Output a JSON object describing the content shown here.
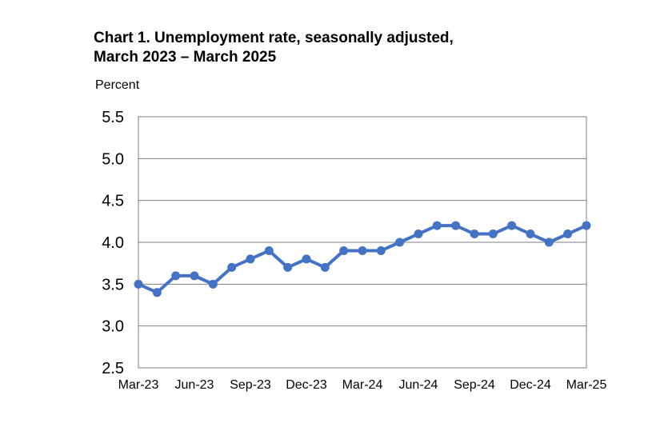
{
  "chart_data": {
    "type": "line",
    "title_lines": [
      "Chart 1. Unemployment rate, seasonally adjusted,",
      "March 2023 – March 2025"
    ],
    "ylabel": "Percent",
    "xlabel": "",
    "ylim": [
      2.5,
      5.5
    ],
    "yticks": [
      "2.5",
      "3.0",
      "3.5",
      "4.0",
      "4.5",
      "5.0",
      "5.5"
    ],
    "x": [
      "Mar-23",
      "Apr-23",
      "May-23",
      "Jun-23",
      "Jul-23",
      "Aug-23",
      "Sep-23",
      "Oct-23",
      "Nov-23",
      "Dec-23",
      "Jan-24",
      "Feb-24",
      "Mar-24",
      "Apr-24",
      "May-24",
      "Jun-24",
      "Jul-24",
      "Aug-24",
      "Sep-24",
      "Oct-24",
      "Nov-24",
      "Dec-24",
      "Jan-25",
      "Feb-25",
      "Mar-25"
    ],
    "xtick_labels": [
      "Mar-23",
      "Jun-23",
      "Sep-23",
      "Dec-23",
      "Mar-24",
      "Jun-24",
      "Sep-24",
      "Dec-24",
      "Mar-25"
    ],
    "series": [
      {
        "values": [
          3.5,
          3.4,
          3.6,
          3.6,
          3.5,
          3.7,
          3.8,
          3.9,
          3.7,
          3.8,
          3.7,
          3.9,
          3.9,
          3.9,
          4.0,
          4.1,
          4.2,
          4.2,
          4.1,
          4.1,
          4.2,
          4.1,
          4.0,
          4.1,
          4.2
        ],
        "color": "#4472C4"
      }
    ],
    "grid": "horizontal",
    "legend": "none"
  }
}
